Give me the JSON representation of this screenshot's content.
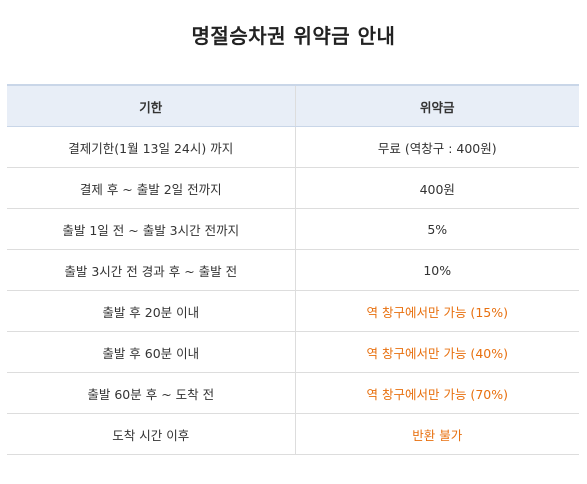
{
  "title": "명절승차권 위약금 안내",
  "table": {
    "headers": [
      "기한",
      "위약금"
    ],
    "rows": [
      {
        "period": "결제기한(1월 13일 24시) 까지",
        "fee": "무료 (역창구 : 400원)",
        "highlight": false
      },
      {
        "period": "결제 후 ~ 출발 2일 전까지",
        "fee": "400원",
        "highlight": false
      },
      {
        "period": "출발 1일 전 ~ 출발 3시간 전까지",
        "fee": "5%",
        "highlight": false
      },
      {
        "period": "출발 3시간 전 경과 후 ~ 출발 전",
        "fee": "10%",
        "highlight": false
      },
      {
        "period": "출발 후 20분 이내",
        "fee": "역 창구에서만 가능 (15%)",
        "highlight": true
      },
      {
        "period": "출발 후 60분 이내",
        "fee": "역 창구에서만 가능 (40%)",
        "highlight": true
      },
      {
        "period": "출발 60분 후 ~ 도착 전",
        "fee": "역 창구에서만 가능 (70%)",
        "highlight": true
      },
      {
        "period": "도착 시간 이후",
        "fee": "반환 불가",
        "highlight": true
      }
    ]
  },
  "colors": {
    "header_bg": "#e8eef7",
    "highlight_text": "#e8700f"
  }
}
